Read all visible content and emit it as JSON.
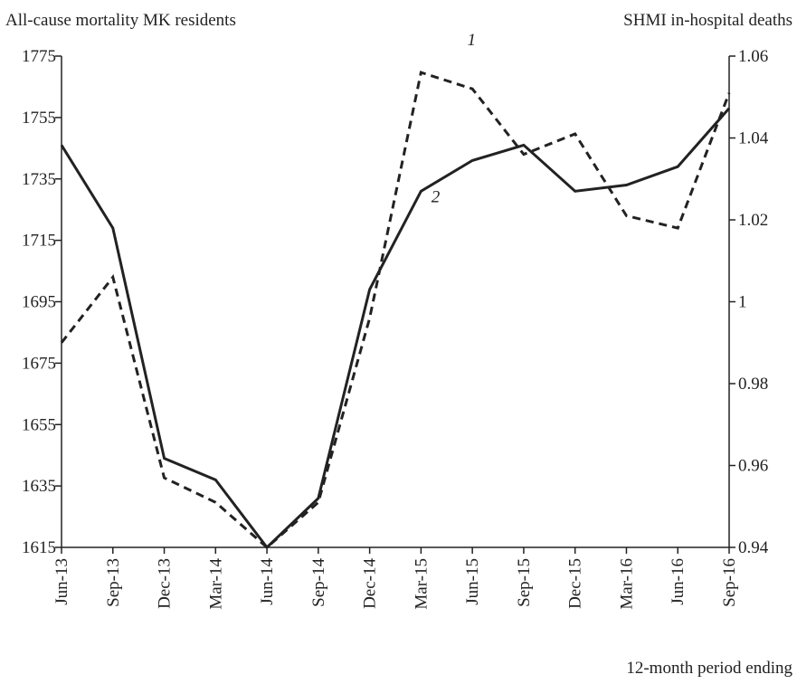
{
  "chart_data": {
    "type": "line",
    "y_label": "All-cause mortality MK residents",
    "y2_label": "SHMI in-hospital deaths",
    "x_label": "12-month period ending",
    "categories": [
      "Jun-13",
      "Sep-13",
      "Dec-13",
      "Mar-14",
      "Jun-14",
      "Sep-14",
      "Dec-14",
      "Mar-15",
      "Jun-15",
      "Sep-15",
      "Dec-15",
      "Mar-16",
      "Jun-16",
      "Sep-16"
    ],
    "series": [
      {
        "name": "1",
        "color": "#222222",
        "dash": true,
        "axis": "y2",
        "values": [
          0.99,
          1.006,
          0.957,
          0.951,
          0.94,
          0.951,
          0.996,
          1.056,
          1.052,
          1.036,
          1.041,
          1.021,
          1.018,
          1.051
        ]
      },
      {
        "name": "2",
        "color": "#222222",
        "dash": false,
        "axis": "y",
        "values": [
          1746,
          1719,
          1644,
          1637,
          1615,
          1631,
          1699,
          1731,
          1741,
          1746,
          1731,
          1733,
          1739,
          1758
        ]
      }
    ],
    "ylim": [
      1615,
      1775
    ],
    "yticks": [
      1615,
      1635,
      1655,
      1675,
      1695,
      1715,
      1735,
      1755,
      1775
    ],
    "y2lim": [
      0.94,
      1.06
    ],
    "y2ticks": [
      0.94,
      0.96,
      0.98,
      1,
      1.02,
      1.04,
      1.06
    ]
  }
}
